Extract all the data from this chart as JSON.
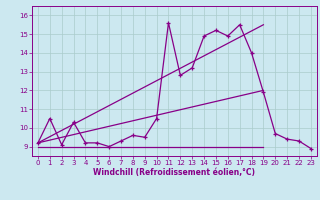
{
  "xlabel": "Windchill (Refroidissement éolien,°C)",
  "background_color": "#cce8f0",
  "grid_color": "#aacccc",
  "line_color": "#880088",
  "xlim": [
    -0.5,
    23.5
  ],
  "ylim": [
    8.5,
    16.5
  ],
  "yticks": [
    9,
    10,
    11,
    12,
    13,
    14,
    15,
    16
  ],
  "xticks": [
    0,
    1,
    2,
    3,
    4,
    5,
    6,
    7,
    8,
    9,
    10,
    11,
    12,
    13,
    14,
    15,
    16,
    17,
    18,
    19,
    20,
    21,
    22,
    23
  ],
  "line1_x": [
    0,
    1,
    2,
    3,
    4,
    5,
    6,
    7,
    8,
    9,
    10,
    11,
    12,
    13,
    14,
    15,
    16,
    17,
    18,
    19,
    20,
    21,
    22,
    23
  ],
  "line1_y": [
    9.2,
    10.5,
    9.1,
    10.3,
    9.2,
    9.2,
    9.0,
    9.3,
    9.6,
    9.5,
    10.5,
    15.6,
    12.8,
    13.2,
    14.9,
    15.2,
    14.9,
    15.5,
    14.0,
    11.9,
    9.7,
    9.4,
    9.3,
    8.9
  ],
  "line2_x": [
    0,
    19
  ],
  "line2_y": [
    9.0,
    9.0
  ],
  "line3_x": [
    0,
    19
  ],
  "line3_y": [
    9.2,
    15.5
  ],
  "line4_x": [
    0,
    19
  ],
  "line4_y": [
    9.2,
    12.0
  ]
}
